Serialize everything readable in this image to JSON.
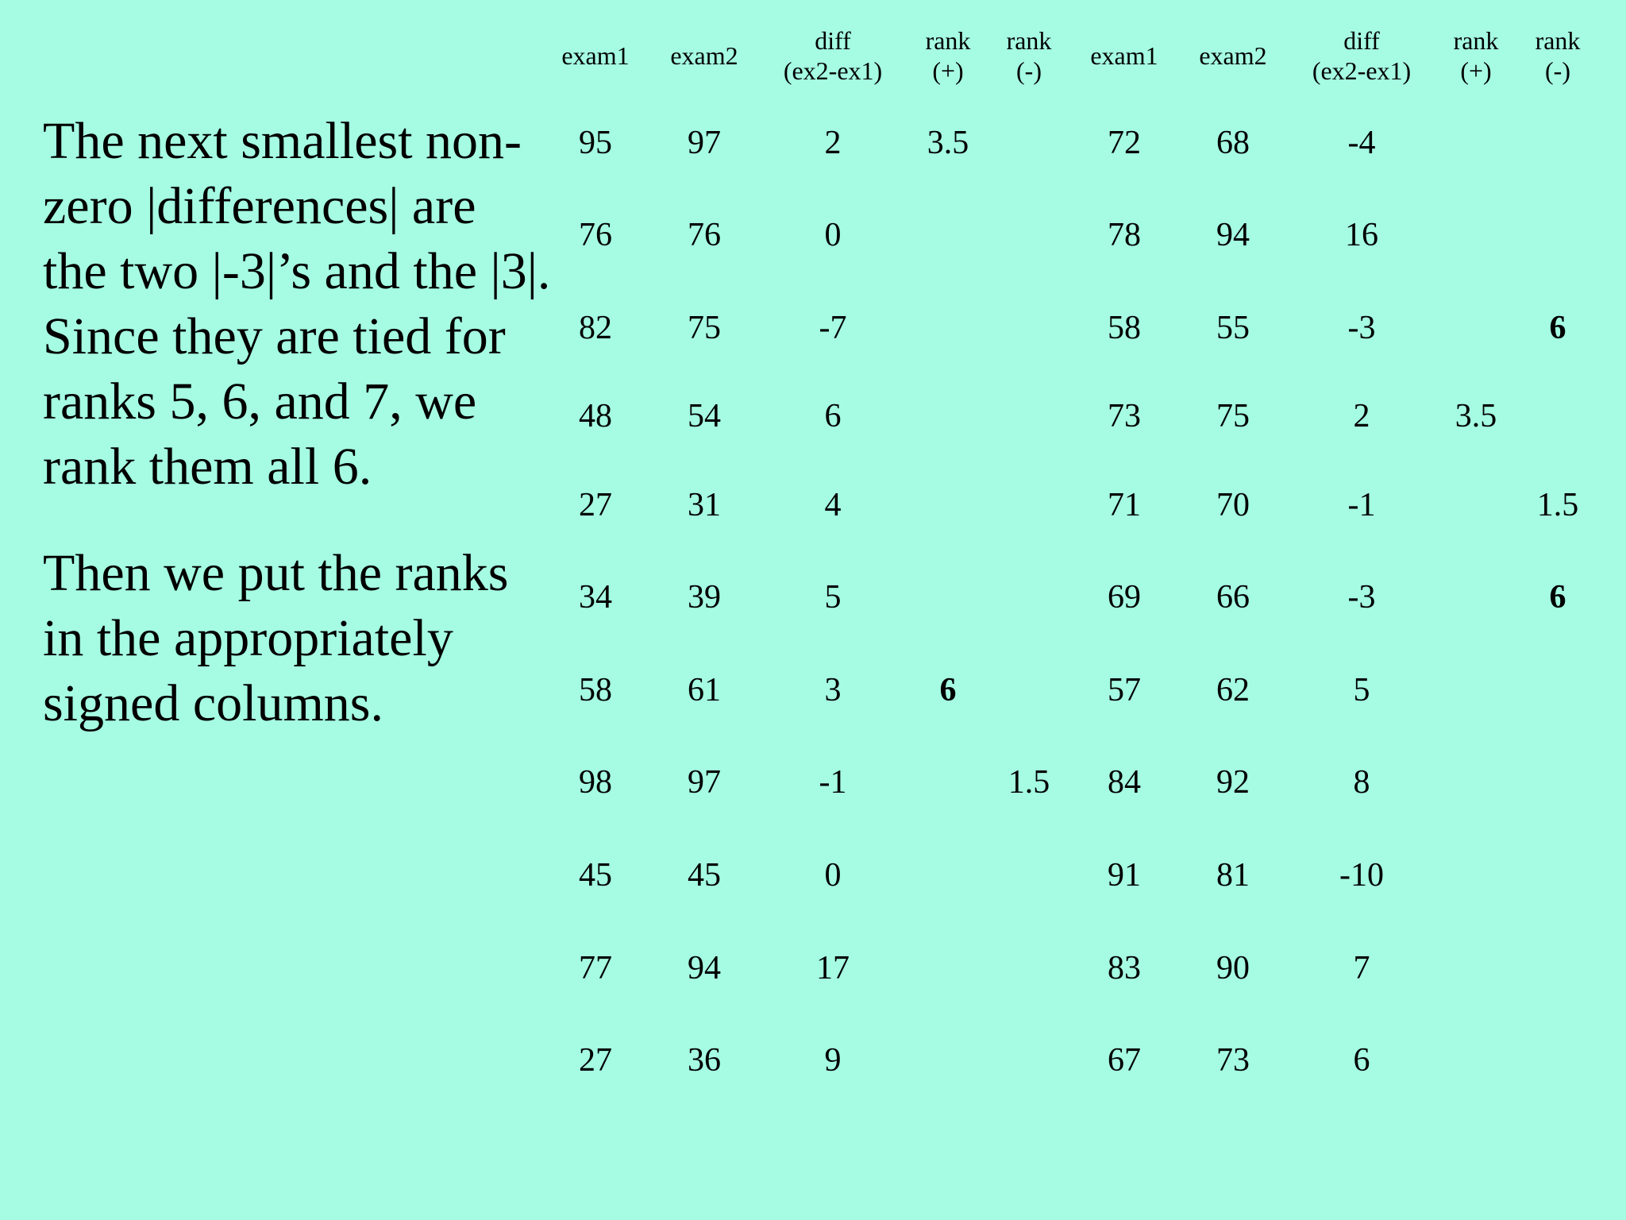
{
  "text": {
    "paragraph1": "The next smallest non-zero |differences| are the two |-3|’s and the |3|.  Since they are tied for ranks 5, 6, and 7, we rank them all 6.",
    "paragraph2": "Then we put the ranks in the appropriately signed columns."
  },
  "table": {
    "headers": [
      {
        "line1": "exam1",
        "line2": ""
      },
      {
        "line1": "exam2",
        "line2": ""
      },
      {
        "line1": "diff",
        "line2": "(ex2-ex1)"
      },
      {
        "line1": "rank",
        "line2": "(+)"
      },
      {
        "line1": "rank",
        "line2": "(-)"
      },
      {
        "line1": "exam1",
        "line2": ""
      },
      {
        "line1": "exam2",
        "line2": ""
      },
      {
        "line1": "diff",
        "line2": "(ex2-ex1)"
      },
      {
        "line1": "rank",
        "line2": "(+)"
      },
      {
        "line1": "rank",
        "line2": "(-)"
      }
    ],
    "rows": [
      [
        "95",
        "97",
        "2",
        "3.5",
        "",
        "72",
        "68",
        "-4",
        "",
        ""
      ],
      [
        "76",
        "76",
        "0",
        "",
        "",
        "78",
        "94",
        "16",
        "",
        ""
      ],
      [
        "82",
        "75",
        "-7",
        "",
        "",
        "58",
        "55",
        "-3",
        "",
        "6"
      ],
      [
        "48",
        "54",
        "6",
        "",
        "",
        "73",
        "75",
        "2",
        "3.5",
        ""
      ],
      [
        "27",
        "31",
        "4",
        "",
        "",
        "71",
        "70",
        "-1",
        "",
        "1.5"
      ],
      [
        "34",
        "39",
        "5",
        "",
        "",
        "69",
        "66",
        "-3",
        "",
        "6"
      ],
      [
        "58",
        "61",
        "3",
        "6",
        "",
        "57",
        "62",
        "5",
        "",
        ""
      ],
      [
        "98",
        "97",
        "-1",
        "",
        "1.5",
        "84",
        "92",
        "8",
        "",
        ""
      ],
      [
        "45",
        "45",
        "0",
        "",
        "",
        "91",
        "81",
        "-10",
        "",
        ""
      ],
      [
        "77",
        "94",
        "17",
        "",
        "",
        "83",
        "90",
        "7",
        "",
        ""
      ],
      [
        "27",
        "36",
        "9",
        "",
        "",
        "67",
        "73",
        "6",
        "",
        ""
      ]
    ],
    "bold_cells": [
      [
        2,
        9
      ],
      [
        5,
        9
      ],
      [
        6,
        3
      ]
    ]
  }
}
